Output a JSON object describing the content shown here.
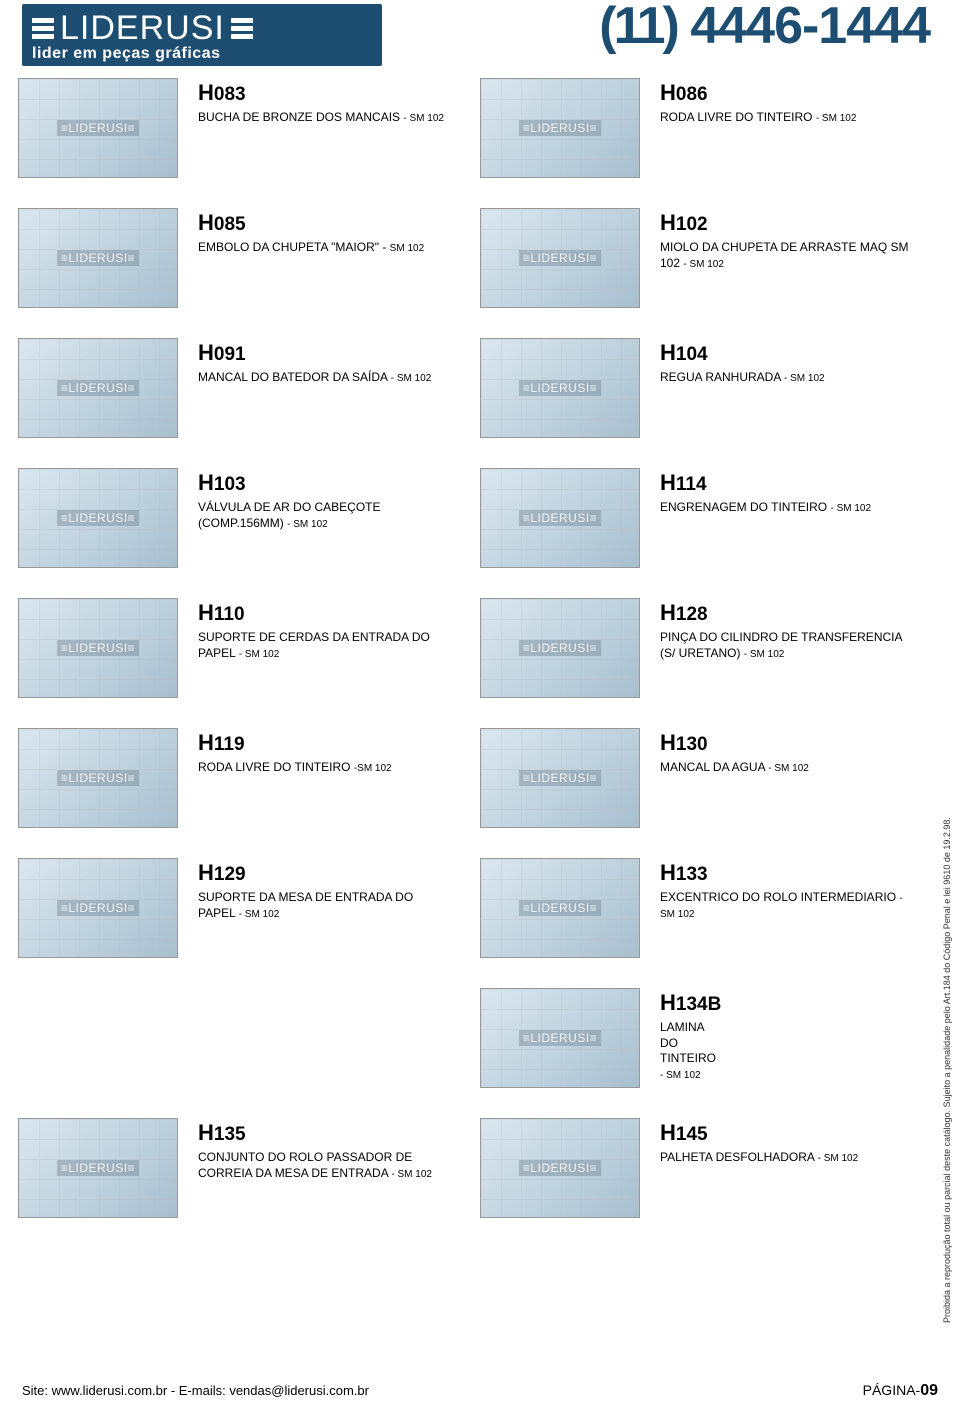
{
  "header": {
    "logo_text": "LIDERUSI",
    "logo_sub": "lider em peças gráficas",
    "phone_area": "(11)",
    "phone_number": "4446-1444"
  },
  "watermark": "≡LIDERUSI≡",
  "colors": {
    "brand": "#1d4d71",
    "thumb_bg_start": "#dbe7ef",
    "thumb_bg_end": "#a8bfcf",
    "grid_line": "#bbbbbb",
    "border": "#999999",
    "text": "#000000"
  },
  "rows": [
    {
      "left": {
        "code_prefix": "H",
        "code_num": "083",
        "desc": "BUCHA DE BRONZE DOS MANCAIS",
        "suffix": "- SM 102"
      },
      "right": {
        "code_prefix": "H",
        "code_num": "086",
        "desc": "RODA LIVRE DO TINTEIRO",
        "suffix": "- SM 102"
      }
    },
    {
      "left": {
        "code_prefix": "H",
        "code_num": "085",
        "desc": "EMBOLO DA CHUPETA \"MAIOR\" -",
        "suffix": "SM 102"
      },
      "right": {
        "code_prefix": "H",
        "code_num": "102",
        "desc": "MIOLO DA CHUPETA DE ARRASTE MAQ SM 102",
        "suffix": "- SM 102"
      }
    },
    {
      "left": {
        "code_prefix": "H",
        "code_num": "091",
        "desc": "MANCAL DO BATEDOR DA SAÍDA",
        "suffix": " - SM 102"
      },
      "right": {
        "code_prefix": "H",
        "code_num": "104",
        "desc": "REGUA RANHURADA",
        "suffix": "- SM 102"
      }
    },
    {
      "left": {
        "code_prefix": "H",
        "code_num": "103",
        "desc": "VÁLVULA DE AR DO CABEÇOTE (COMP.156MM)",
        "suffix": "- SM 102"
      },
      "right": {
        "code_prefix": "H",
        "code_num": "114",
        "desc": "ENGRENAGEM DO TINTEIRO",
        "suffix": "- SM 102"
      }
    },
    {
      "left": {
        "code_prefix": "H",
        "code_num": "110",
        "desc": "SUPORTE DE CERDAS DA ENTRADA DO PAPEL",
        "suffix": "- SM 102"
      },
      "right": {
        "code_prefix": "H",
        "code_num": "128",
        "desc": "PINÇA DO CILINDRO DE TRANSFERENCIA (S/ URETANO)",
        "suffix": "- SM 102"
      }
    },
    {
      "left": {
        "code_prefix": "H",
        "code_num": "119",
        "desc": "RODA LIVRE DO TINTEIRO",
        "suffix": "-SM 102"
      },
      "right": {
        "code_prefix": "H",
        "code_num": "130",
        "desc": "MANCAL DA AGUA",
        "suffix": "- SM 102"
      }
    },
    {
      "left": {
        "code_prefix": "H",
        "code_num": "129",
        "desc": "SUPORTE DA MESA DE ENTRADA DO PAPEL",
        "suffix": "- SM 102"
      },
      "right": {
        "code_prefix": "H",
        "code_num": "133",
        "desc": "EXCENTRICO DO ROLO INTERMEDIARIO",
        "suffix": " - SM 102"
      }
    },
    {
      "left": null,
      "right": {
        "code_prefix": "H",
        "code_num": "134B",
        "desc": "LAMINA DO TINTEIRO",
        "suffix": "- SM 102"
      }
    },
    {
      "left": {
        "code_prefix": "H",
        "code_num": "135",
        "desc": "CONJUNTO DO ROLO PASSADOR DE CORREIA DA MESA DE ENTRADA",
        "suffix": " - SM 102"
      },
      "right": {
        "code_prefix": "H",
        "code_num": "145",
        "desc": "PALHETA DESFOLHADORA",
        "suffix": "- SM 102"
      }
    }
  ],
  "side_note": "Proibida a reprodução total ou parcial deste catálogo. Sujeito a penalidade pelo Art.184 do Código Penal e lei 9610 de 19.2.98.",
  "footer": {
    "left": "Site: www.liderusi.com.br - E-mails: vendas@liderusi.com.br",
    "right_label": "PÁGINA-",
    "right_num": "09"
  }
}
